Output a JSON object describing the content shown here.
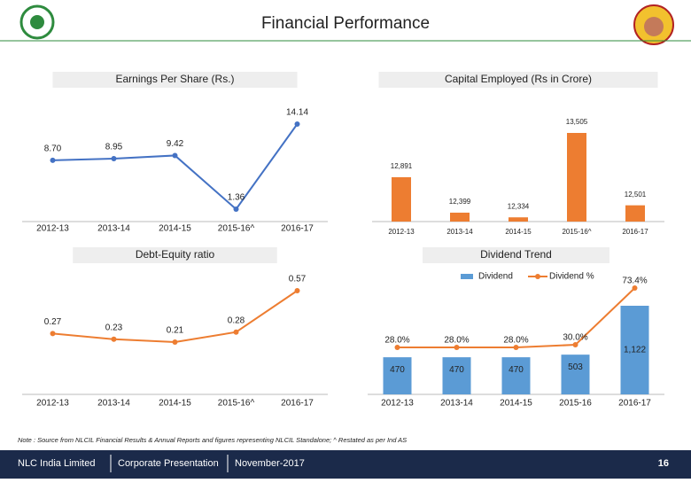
{
  "title": "Financial Performance",
  "chart_data": [
    {
      "type": "line",
      "title": "Earnings Per Share (Rs.)",
      "categories": [
        "2012-13",
        "2013-14",
        "2014-15",
        "2015-16^",
        "2016-17"
      ],
      "values": [
        8.7,
        8.95,
        9.42,
        1.36,
        14.14
      ],
      "value_labels": [
        "8.70",
        "8.95",
        "9.42",
        "1.36",
        "14.14"
      ],
      "color": "#4472c4"
    },
    {
      "type": "bar",
      "title": "Capital Employed (Rs in Crore)",
      "categories": [
        "2012-13",
        "2013-14",
        "2014-15",
        "2015-16^",
        "2016-17"
      ],
      "values": [
        12891,
        12399,
        12334,
        13505,
        12501
      ],
      "value_labels": [
        "12,891",
        "12,399",
        "12,334",
        "13,505",
        "12,501"
      ],
      "color": "#ed7d31"
    },
    {
      "type": "line",
      "title": "Debt-Equity ratio",
      "categories": [
        "2012-13",
        "2013-14",
        "2014-15",
        "2015-16^",
        "2016-17"
      ],
      "values": [
        0.27,
        0.23,
        0.21,
        0.28,
        0.57
      ],
      "color": "#ed7d31"
    },
    {
      "type": "combo",
      "title": "Dividend Trend",
      "categories": [
        "2012-13",
        "2013-14",
        "2014-15",
        "2015-16",
        "2016-17"
      ],
      "series": [
        {
          "name": "Dividend",
          "color": "#5b9bd5",
          "kind": "bar",
          "values": [
            470,
            470,
            470,
            503,
            1122
          ],
          "value_labels": [
            "470",
            "470",
            "470",
            "503",
            "1,122"
          ]
        },
        {
          "name": "Dividend %",
          "color": "#ed7d31",
          "kind": "line",
          "values": [
            28.0,
            28.0,
            28.0,
            30.0,
            73.4
          ],
          "value_labels": [
            "28.0%",
            "28.0%",
            "28.0%",
            "30.0%",
            "73.4%"
          ]
        }
      ]
    }
  ],
  "note": "Note : Source from NLCIL Financial Results & Annual Reports and figures representing NLCIL Standalone; ^ Restated as per Ind AS",
  "footer": {
    "company": "NLC India Limited",
    "section": "Corporate Presentation",
    "date": "November-2017",
    "page": "16"
  }
}
